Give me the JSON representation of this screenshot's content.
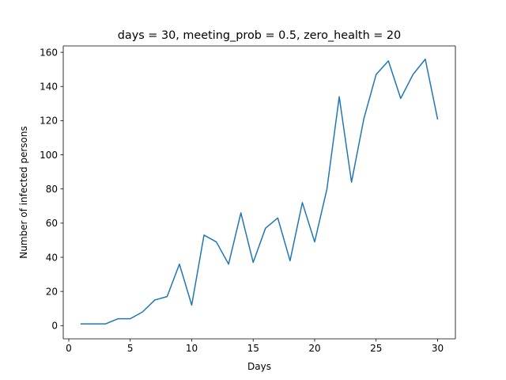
{
  "chart_data": {
    "type": "line",
    "title": "days = 30, meeting_prob = 0.5, zero_health = 20",
    "xlabel": "Days",
    "ylabel": "Number of infected persons",
    "xlim": [
      -0.45,
      31.45
    ],
    "ylim": [
      -7.75,
      163.75
    ],
    "xticks": [
      0,
      5,
      10,
      15,
      20,
      25,
      30
    ],
    "yticks": [
      0,
      20,
      40,
      60,
      80,
      100,
      120,
      140,
      160
    ],
    "grid": false,
    "line_color": "#1f77b4",
    "series": [
      {
        "x": [
          1,
          2,
          3,
          4,
          5,
          6,
          7,
          8,
          9,
          10,
          11,
          12,
          13,
          14,
          15,
          16,
          17,
          18,
          19,
          20,
          21,
          22,
          23,
          24,
          25,
          26,
          27,
          28,
          29,
          30
        ],
        "y": [
          1,
          1,
          1,
          4,
          4,
          8,
          15,
          17,
          36,
          12,
          53,
          49,
          36,
          66,
          37,
          57,
          63,
          38,
          72,
          49,
          80,
          134,
          84,
          121,
          147,
          155,
          133,
          147,
          156,
          121
        ]
      }
    ]
  }
}
